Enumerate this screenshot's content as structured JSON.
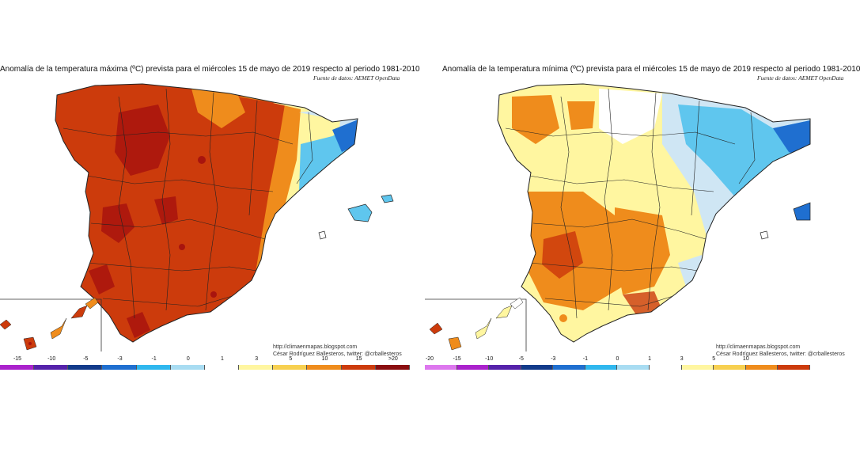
{
  "maps": [
    {
      "title": "Anomalía de la temperatura máxima (ºC) prevista para el miércoles 15 de mayo de 2019 respecto al periodo 1981-2010",
      "source": "Fuente de datos: AEMET OpenData",
      "credit_line1": "http://climaenmapas.blogspot.com",
      "credit_line2": "César Rodríguez Ballesteros, twitter: @crballesteros",
      "dominant_anomaly_color": "#cc3b0c"
    },
    {
      "title": "Anomalía de la temperatura mínima (ºC) prevista para el miércoles 15 de mayo de 2019 respecto al periodo 1981-2010",
      "source": "Fuente de datos: AEMET OpenData",
      "credit_line1": "http://climaenmapas.blogspot.com",
      "credit_line2": "César Rodríguez Ballesteros, twitter: @crballesteros",
      "dominant_anomaly_color": "#f6c84a"
    }
  ],
  "legend": {
    "ticks": [
      "-20",
      "-15",
      "-10",
      "-5",
      "-3",
      "-1",
      "0",
      "1",
      "3",
      "5",
      "10",
      "15",
      ">20"
    ],
    "colors": [
      "#dd77ee",
      "#aa22cc",
      "#5522aa",
      "#123a8a",
      "#1f6fd0",
      "#2fb7ee",
      "#a8dcf2",
      "#ffffff",
      "#fff6a0",
      "#f7d050",
      "#ef8c1c",
      "#cc3b0c",
      "#8a0e10"
    ]
  },
  "legend_left": {
    "ticks": [
      "-15",
      "-10",
      "-5",
      "-3",
      "-1",
      "0",
      "1",
      "3",
      "5",
      "10",
      "15",
      ">20"
    ]
  },
  "legend_right": {
    "ticks": [
      "-20",
      "-15",
      "-10",
      "-5",
      "-3",
      "-1",
      "0",
      "1",
      "3",
      "5",
      "10"
    ]
  },
  "colors": {
    "very_warm": "#cc3b0c",
    "extreme_warm": "#a8140e",
    "warm": "#ef8c1c",
    "mild": "#f7d050",
    "slight": "#fff6a0",
    "neutral": "#ffffff",
    "slight_cool": "#cfe6f4",
    "cool": "#5fc6ee",
    "cold": "#1f6fd0"
  }
}
